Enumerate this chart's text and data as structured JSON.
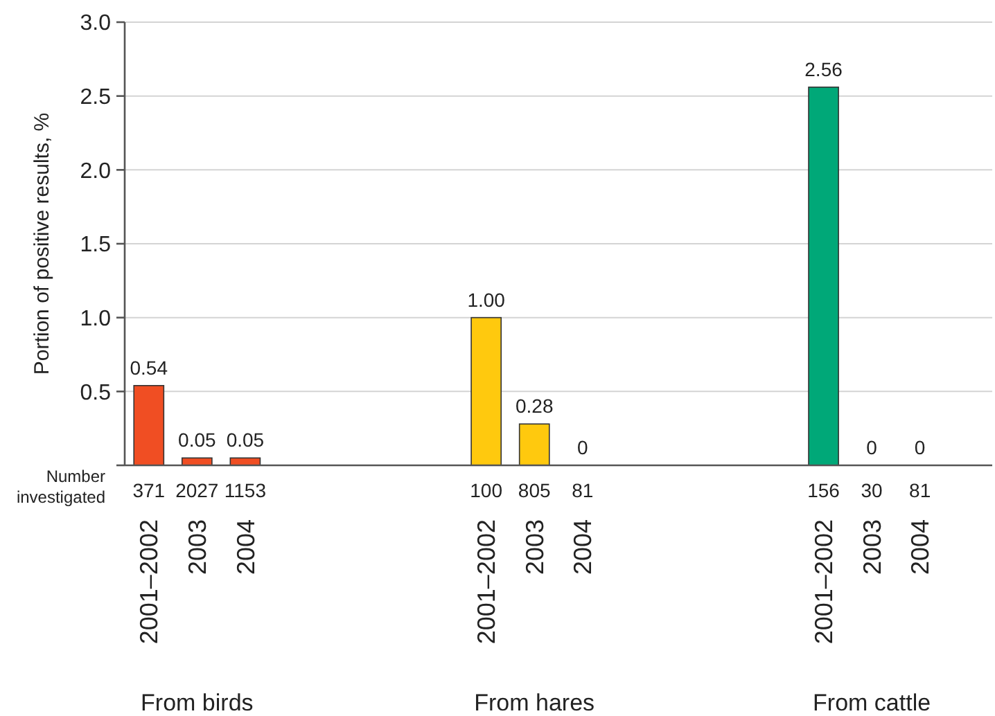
{
  "chart_data": {
    "type": "bar",
    "ylabel": "Portion of positive results, %",
    "categories": [
      "2001–2002",
      "2003",
      "2004",
      null,
      null,
      null,
      null,
      "2001–2002",
      "2003",
      "2004",
      null,
      null,
      null,
      null,
      "2001–2002",
      "2003",
      "2004",
      null
    ],
    "values": [
      0.54,
      0.05,
      0.05,
      null,
      null,
      null,
      null,
      1.0,
      0.28,
      0,
      null,
      null,
      null,
      null,
      2.56,
      0,
      0,
      null
    ],
    "value_labels": [
      "0.54",
      "0.05",
      "0.05",
      null,
      null,
      null,
      null,
      "1.00",
      "0.28",
      "0",
      null,
      null,
      null,
      null,
      "2.56",
      "0",
      "0",
      null
    ],
    "colors": [
      "#f04e23",
      "#f04e23",
      "#f04e23",
      null,
      null,
      null,
      null,
      "#ffc90e",
      "#ffc90e",
      null,
      null,
      null,
      null,
      null,
      "#00a878",
      null,
      null,
      null
    ],
    "ylim": [
      0,
      3
    ],
    "yticks": [
      {
        "value": 0,
        "label": null
      },
      {
        "value": 0.5,
        "label": "0.5"
      },
      {
        "value": 1,
        "label": "1.0"
      },
      {
        "value": 1.5,
        "label": "1.5"
      },
      {
        "value": 2,
        "label": "2.0"
      },
      {
        "value": 2.5,
        "label": "2.5"
      },
      {
        "value": 3,
        "label": "3.0"
      }
    ],
    "grid": "y",
    "annotations": [
      "Number investigated",
      "371",
      "2027",
      "1153",
      "100",
      "805",
      "81",
      "156",
      "30",
      "81",
      "From birds",
      "From hares",
      "From cattle"
    ]
  }
}
